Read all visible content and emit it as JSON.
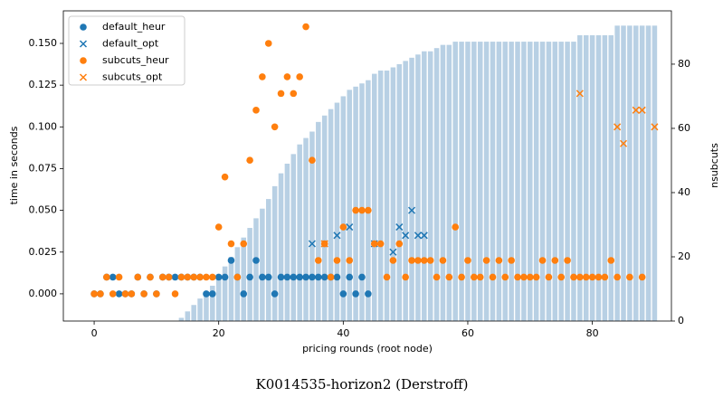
{
  "chart_data": {
    "type": "scatter",
    "title": "K0014535-horizon2 (Derstroff)",
    "x_label": "pricing rounds (root node)",
    "y_label": "time in seconds",
    "y2_label": "nsubcuts",
    "legend": "upper left",
    "xlim": [
      -4.95,
      92.7
    ],
    "xticks": [
      0,
      20,
      40,
      60,
      80
    ],
    "ylim": [
      -0.0163,
      0.1695
    ],
    "yticks": [
      {
        "value": 0,
        "label": "0.000"
      },
      {
        "value": 0.025,
        "label": "0.025"
      },
      {
        "value": 0.05,
        "label": "0.050"
      },
      {
        "value": 0.075,
        "label": "0.075"
      },
      {
        "value": 0.1,
        "label": "0.100"
      },
      {
        "value": 0.125,
        "label": "0.125"
      },
      {
        "value": 0.15,
        "label": "0.150"
      }
    ],
    "y2lim": [
      0,
      96.6
    ],
    "y2ticks": [
      0,
      20,
      40,
      60,
      80
    ],
    "bars": {
      "type": "bar",
      "axis": "y2",
      "color": "#b8d0e4",
      "x": [
        0,
        1,
        2,
        3,
        4,
        5,
        6,
        7,
        8,
        9,
        10,
        11,
        12,
        13,
        14,
        15,
        16,
        17,
        18,
        19,
        20,
        21,
        22,
        23,
        24,
        25,
        26,
        27,
        28,
        29,
        30,
        31,
        32,
        33,
        34,
        35,
        36,
        37,
        38,
        39,
        40,
        41,
        42,
        43,
        44,
        45,
        46,
        47,
        48,
        49,
        50,
        51,
        52,
        53,
        54,
        55,
        56,
        57,
        58,
        59,
        60,
        61,
        62,
        63,
        64,
        65,
        66,
        67,
        68,
        69,
        70,
        71,
        72,
        73,
        74,
        75,
        76,
        77,
        78,
        79,
        80,
        81,
        82,
        83,
        84,
        85,
        86,
        87,
        88,
        89,
        90
      ],
      "values": [
        0,
        0,
        0,
        0,
        0,
        0,
        0,
        0,
        0,
        0,
        0,
        0,
        0,
        0,
        1,
        3,
        5,
        7,
        9,
        11,
        14,
        17,
        20,
        23,
        26,
        29,
        32,
        35,
        38,
        42,
        46,
        49,
        52,
        55,
        57,
        59,
        62,
        64,
        66,
        68,
        70,
        72,
        73,
        74,
        75,
        77,
        78,
        78,
        79,
        80,
        81,
        82,
        83,
        84,
        84,
        85,
        86,
        86,
        87,
        87,
        87,
        87,
        87,
        87,
        87,
        87,
        87,
        87,
        87,
        87,
        87,
        87,
        87,
        87,
        87,
        87,
        87,
        87,
        89,
        89,
        89,
        89,
        89,
        89,
        92,
        92,
        92,
        92,
        92,
        92,
        92
      ]
    },
    "series": [
      {
        "name": "default_heur",
        "color": "#1f77b4",
        "marker": "o",
        "x": [
          0,
          1,
          2,
          3,
          4,
          5,
          6,
          7,
          8,
          9,
          10,
          11,
          12,
          13,
          14,
          15,
          16,
          17,
          18,
          19,
          20,
          21,
          22,
          23,
          24,
          25,
          26,
          27,
          28,
          29,
          30,
          31,
          32,
          33,
          34,
          35,
          36,
          37,
          38,
          39,
          40,
          41,
          42,
          43,
          44
        ],
        "values": [
          0,
          0,
          0.01,
          0.01,
          0,
          0,
          0,
          0.01,
          0,
          0.01,
          0,
          0.01,
          0.01,
          0.01,
          0.01,
          0.01,
          0.01,
          0.01,
          0,
          0,
          0.01,
          0.01,
          0.02,
          0.01,
          0,
          0.01,
          0.02,
          0.01,
          0.01,
          0,
          0.01,
          0.01,
          0.01,
          0.01,
          0.01,
          0.01,
          0.01,
          0.01,
          0.01,
          0.01,
          0,
          0.01,
          0,
          0.01,
          0
        ]
      },
      {
        "name": "default_opt",
        "color": "#1f77b4",
        "marker": "x",
        "x": [
          35,
          37,
          39,
          41,
          45,
          48,
          49,
          50,
          51,
          52,
          53
        ],
        "values": [
          0.03,
          0.03,
          0.035,
          0.04,
          0.03,
          0.025,
          0.04,
          0.035,
          0.05,
          0.035,
          0.035
        ]
      },
      {
        "name": "subcuts_heur",
        "color": "#ff7f0e",
        "marker": "o",
        "x": [
          0,
          1,
          2,
          3,
          4,
          5,
          6,
          7,
          8,
          9,
          10,
          11,
          12,
          13,
          14,
          15,
          16,
          17,
          18,
          19,
          20,
          21,
          22,
          23,
          24,
          25,
          26,
          27,
          28,
          29,
          30,
          31,
          32,
          33,
          34,
          35,
          36,
          37,
          38,
          39,
          40,
          41,
          42,
          43,
          44,
          45,
          46,
          47,
          48,
          49,
          50,
          51,
          52,
          53,
          54,
          55,
          56,
          57,
          58,
          59,
          60,
          61,
          62,
          63,
          64,
          65,
          66,
          67,
          68,
          69,
          70,
          71,
          72,
          73,
          74,
          75,
          76,
          77,
          78,
          79,
          80,
          81,
          82,
          83,
          84,
          86,
          88
        ],
        "values": [
          0,
          0,
          0.01,
          0,
          0.01,
          0,
          0,
          0.01,
          0,
          0.01,
          0,
          0.01,
          0.01,
          0,
          0.01,
          0.01,
          0.01,
          0.01,
          0.01,
          0.01,
          0.04,
          0.07,
          0.03,
          0.01,
          0.03,
          0.08,
          0.11,
          0.13,
          0.15,
          0.1,
          0.12,
          0.13,
          0.12,
          0.13,
          0.16,
          0.08,
          0.02,
          0.03,
          0.01,
          0.02,
          0.04,
          0.02,
          0.05,
          0.05,
          0.05,
          0.03,
          0.03,
          0.01,
          0.02,
          0.03,
          0.01,
          0.02,
          0.02,
          0.02,
          0.02,
          0.01,
          0.02,
          0.01,
          0.04,
          0.01,
          0.02,
          0.01,
          0.01,
          0.02,
          0.01,
          0.02,
          0.01,
          0.02,
          0.01,
          0.01,
          0.01,
          0.01,
          0.02,
          0.01,
          0.02,
          0.01,
          0.02,
          0.01,
          0.01,
          0.01,
          0.01,
          0.01,
          0.01,
          0.02,
          0.01,
          0.01,
          0.01
        ]
      },
      {
        "name": "subcuts_opt",
        "color": "#ff7f0e",
        "marker": "x",
        "x": [
          37,
          78,
          84,
          85,
          87,
          88,
          90
        ],
        "values": [
          0.03,
          0.12,
          0.1,
          0.09,
          0.11,
          0.11,
          0.1
        ]
      }
    ]
  }
}
